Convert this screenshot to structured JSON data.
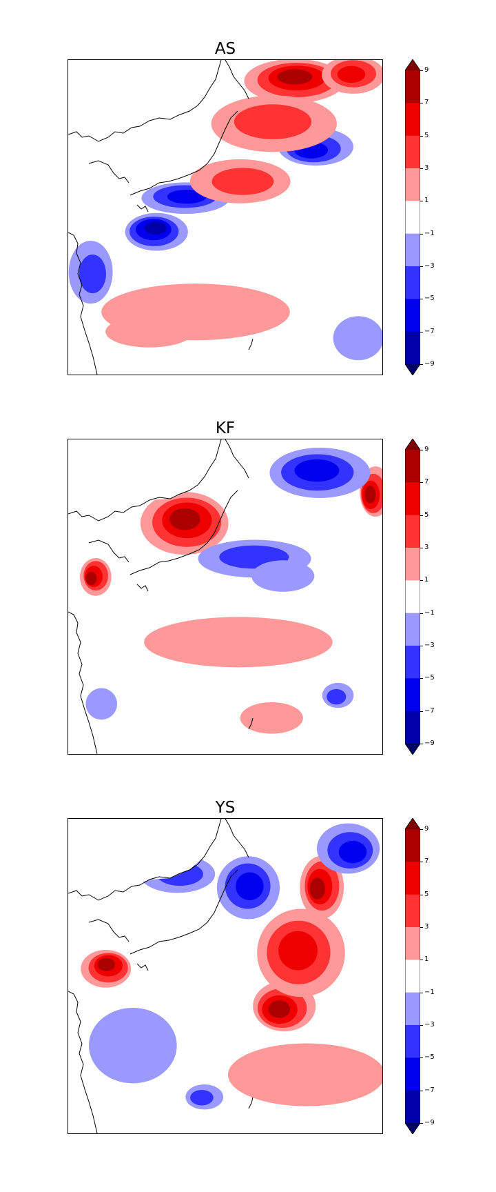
{
  "chart_data": [
    {
      "type": "heatmap",
      "title": "AS",
      "colorbar": {
        "ticks": [
          "9",
          "7",
          "5",
          "3",
          "1",
          "−1",
          "−3",
          "−5",
          "−7",
          "−9"
        ],
        "levels": [
          -9,
          -7,
          -5,
          -3,
          -1,
          1,
          3,
          5,
          7,
          9
        ],
        "extend": "both",
        "colors": [
          "#000066",
          "#0000aa",
          "#0000ee",
          "#3333ff",
          "#9999ff",
          "#ffffff",
          "#ff9999",
          "#ff3333",
          "#ee0000",
          "#aa0000",
          "#800000"
        ]
      },
      "regions": [
        {
          "level": 7,
          "cx": 0.72,
          "cy": 0.06,
          "rx": 0.16,
          "ry": 0.07
        },
        {
          "level": 5,
          "cx": 0.9,
          "cy": 0.05,
          "rx": 0.1,
          "ry": 0.06
        },
        {
          "level": -5,
          "cx": 0.78,
          "cy": 0.28,
          "rx": 0.12,
          "ry": 0.06
        },
        {
          "level": -7,
          "cx": 0.28,
          "cy": 0.54,
          "rx": 0.1,
          "ry": 0.06
        },
        {
          "level": -5,
          "cx": 0.38,
          "cy": 0.44,
          "rx": 0.14,
          "ry": 0.05
        },
        {
          "level": -3,
          "cx": 0.08,
          "cy": 0.68,
          "rx": 0.07,
          "ry": 0.1
        },
        {
          "level": 3,
          "cx": 0.55,
          "cy": 0.38,
          "rx": 0.16,
          "ry": 0.07
        },
        {
          "level": 1,
          "cx": 0.4,
          "cy": 0.8,
          "rx": 0.3,
          "ry": 0.09
        },
        {
          "level": 1,
          "cx": 0.25,
          "cy": 0.87,
          "rx": 0.14,
          "ry": 0.05
        },
        {
          "level": -1,
          "cx": 0.92,
          "cy": 0.88,
          "rx": 0.08,
          "ry": 0.07
        },
        {
          "level": 3,
          "cx": 0.66,
          "cy": 0.2,
          "rx": 0.2,
          "ry": 0.09
        }
      ]
    },
    {
      "type": "heatmap",
      "title": "KF",
      "colorbar": {
        "ticks": [
          "9",
          "7",
          "5",
          "3",
          "1",
          "−1",
          "−3",
          "−5",
          "−7",
          "−9"
        ],
        "levels": [
          -9,
          -7,
          -5,
          -3,
          -1,
          1,
          3,
          5,
          7,
          9
        ],
        "extend": "both",
        "colors": [
          "#000066",
          "#0000aa",
          "#0000ee",
          "#3333ff",
          "#9999ff",
          "#ffffff",
          "#ff9999",
          "#ff3333",
          "#ee0000",
          "#aa0000",
          "#800000"
        ]
      },
      "regions": [
        {
          "level": 7,
          "cx": 0.37,
          "cy": 0.26,
          "rx": 0.14,
          "ry": 0.1
        },
        {
          "level": 7,
          "cx": 0.08,
          "cy": 0.44,
          "rx": 0.05,
          "ry": 0.06
        },
        {
          "level": 7,
          "cx": 0.97,
          "cy": 0.17,
          "rx": 0.05,
          "ry": 0.08
        },
        {
          "level": -5,
          "cx": 0.8,
          "cy": 0.1,
          "rx": 0.16,
          "ry": 0.08
        },
        {
          "level": -3,
          "cx": 0.6,
          "cy": 0.38,
          "rx": 0.18,
          "ry": 0.06
        },
        {
          "level": 1,
          "cx": 0.55,
          "cy": 0.65,
          "rx": 0.3,
          "ry": 0.08
        },
        {
          "level": 1,
          "cx": 0.65,
          "cy": 0.88,
          "rx": 0.1,
          "ry": 0.05
        },
        {
          "level": -1,
          "cx": 0.1,
          "cy": 0.84,
          "rx": 0.05,
          "ry": 0.05
        },
        {
          "level": -3,
          "cx": 0.85,
          "cy": 0.82,
          "rx": 0.05,
          "ry": 0.04
        },
        {
          "level": -1,
          "cx": 0.68,
          "cy": 0.43,
          "rx": 0.1,
          "ry": 0.05
        }
      ]
    },
    {
      "type": "heatmap",
      "title": "YS",
      "colorbar": {
        "ticks": [
          "9",
          "7",
          "5",
          "3",
          "1",
          "−1",
          "−3",
          "−5",
          "−7",
          "−9"
        ],
        "levels": [
          -9,
          -7,
          -5,
          -3,
          -1,
          1,
          3,
          5,
          7,
          9
        ],
        "extend": "both",
        "colors": [
          "#000066",
          "#0000aa",
          "#0000ee",
          "#3333ff",
          "#9999ff",
          "#ffffff",
          "#ff9999",
          "#ff3333",
          "#ee0000",
          "#aa0000",
          "#800000"
        ]
      },
      "regions": [
        {
          "level": 7,
          "cx": 0.12,
          "cy": 0.47,
          "rx": 0.08,
          "ry": 0.06
        },
        {
          "level": 7,
          "cx": 0.8,
          "cy": 0.22,
          "rx": 0.07,
          "ry": 0.1
        },
        {
          "level": 7,
          "cx": 0.68,
          "cy": 0.6,
          "rx": 0.1,
          "ry": 0.08
        },
        {
          "level": 5,
          "cx": 0.74,
          "cy": 0.42,
          "rx": 0.14,
          "ry": 0.14
        },
        {
          "level": -5,
          "cx": 0.58,
          "cy": 0.22,
          "rx": 0.1,
          "ry": 0.1
        },
        {
          "level": -5,
          "cx": 0.9,
          "cy": 0.1,
          "rx": 0.1,
          "ry": 0.08
        },
        {
          "level": -3,
          "cx": 0.35,
          "cy": 0.17,
          "rx": 0.12,
          "ry": 0.06
        },
        {
          "level": -1,
          "cx": 0.2,
          "cy": 0.72,
          "rx": 0.14,
          "ry": 0.12
        },
        {
          "level": 1,
          "cx": 0.75,
          "cy": 0.82,
          "rx": 0.25,
          "ry": 0.1
        },
        {
          "level": -3,
          "cx": 0.43,
          "cy": 0.88,
          "rx": 0.06,
          "ry": 0.04
        }
      ]
    }
  ]
}
